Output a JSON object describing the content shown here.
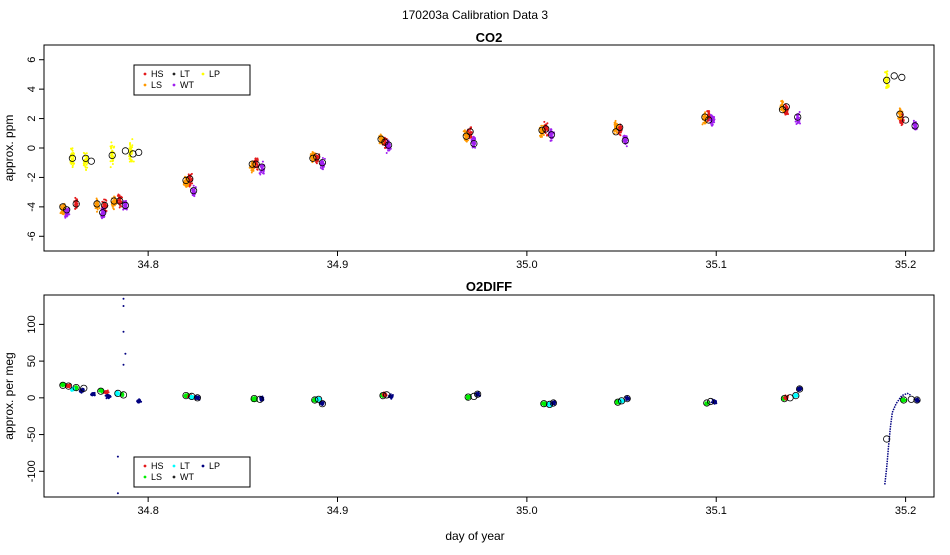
{
  "figure": {
    "suptitle": "170203a   Calibration Data 3",
    "xlabel": "day of year"
  },
  "chart_data": [
    {
      "type": "scatter",
      "title": "CO2",
      "ylabel": "approx. ppm",
      "xlim": [
        34.745,
        35.215
      ],
      "ylim": [
        -7.0,
        7.0
      ],
      "xticks": [
        34.8,
        34.9,
        35.0,
        35.1,
        35.2
      ],
      "xtick_labels": [
        "34.8",
        "34.9",
        "35.0",
        "35.1",
        "35.2"
      ],
      "yticks": [
        -6,
        -4,
        -2,
        0,
        2,
        4,
        6
      ],
      "ytick_labels": [
        "-6",
        "-4",
        "-2",
        "0",
        "2",
        "4",
        "6"
      ],
      "legend": {
        "placement": "top-left",
        "entries": [
          {
            "label": "HS",
            "color": "#e41a1c"
          },
          {
            "label": "LS",
            "color": "#ff9900"
          },
          {
            "label": "LT",
            "color": "#222222"
          },
          {
            "label": "WT",
            "color": "#a020f0"
          },
          {
            "label": "LP",
            "color": "#ffff00"
          }
        ]
      },
      "series": [
        {
          "name": "HS",
          "color": "#e41a1c",
          "clusters": [
            [
              34.762,
              -3.8
            ],
            [
              34.777,
              -3.9
            ],
            [
              34.785,
              -3.6
            ],
            [
              34.822,
              -2.1
            ],
            [
              34.857,
              -1.0
            ],
            [
              34.889,
              -0.7
            ],
            [
              34.925,
              0.4
            ],
            [
              34.97,
              1.0
            ],
            [
              35.01,
              1.3
            ],
            [
              35.049,
              1.2
            ],
            [
              35.096,
              2.1
            ],
            [
              35.137,
              2.6
            ],
            [
              35.198,
              1.9
            ]
          ]
        },
        {
          "name": "LS",
          "color": "#ff9900",
          "clusters": [
            [
              34.755,
              -4.2
            ],
            [
              34.773,
              -3.9
            ],
            [
              34.782,
              -3.7
            ],
            [
              34.82,
              -2.3
            ],
            [
              34.855,
              -1.2
            ],
            [
              34.887,
              -0.6
            ],
            [
              34.923,
              0.6
            ],
            [
              34.968,
              0.8
            ],
            [
              35.008,
              1.1
            ],
            [
              35.047,
              1.4
            ],
            [
              35.094,
              2.0
            ],
            [
              35.135,
              2.8
            ],
            [
              35.197,
              2.3
            ]
          ]
        },
        {
          "name": "WT",
          "color": "#a020f0",
          "clusters": [
            [
              34.757,
              -4.3
            ],
            [
              34.776,
              -4.4
            ],
            [
              34.788,
              -3.9
            ],
            [
              34.824,
              -3.0
            ],
            [
              34.86,
              -1.4
            ],
            [
              34.892,
              -1.1
            ],
            [
              34.927,
              0.1
            ],
            [
              34.972,
              0.4
            ],
            [
              35.013,
              0.9
            ],
            [
              35.052,
              0.5
            ],
            [
              35.098,
              1.9
            ],
            [
              35.143,
              2.0
            ],
            [
              35.205,
              1.5
            ]
          ]
        },
        {
          "name": "LP",
          "color": "#ffff00",
          "clusters": [
            [
              34.76,
              -0.6
            ],
            [
              34.767,
              -0.8
            ],
            [
              34.781,
              -0.5
            ],
            [
              34.791,
              -0.3
            ],
            [
              35.19,
              4.6
            ]
          ]
        }
      ],
      "open_markers": [
        [
          34.755,
          -4.0
        ],
        [
          34.757,
          -4.2
        ],
        [
          34.76,
          -0.7
        ],
        [
          34.762,
          -3.8
        ],
        [
          34.767,
          -0.7
        ],
        [
          34.77,
          -0.9
        ],
        [
          34.773,
          -3.8
        ],
        [
          34.776,
          -4.4
        ],
        [
          34.777,
          -3.9
        ],
        [
          34.781,
          -0.5
        ],
        [
          34.782,
          -3.6
        ],
        [
          34.785,
          -3.6
        ],
        [
          34.788,
          -3.9
        ],
        [
          34.788,
          -0.2
        ],
        [
          34.792,
          -0.4
        ],
        [
          34.795,
          -0.3
        ],
        [
          34.82,
          -2.2
        ],
        [
          34.822,
          -2.1
        ],
        [
          34.824,
          -2.9
        ],
        [
          34.855,
          -1.1
        ],
        [
          34.857,
          -1.1
        ],
        [
          34.86,
          -1.3
        ],
        [
          34.887,
          -0.7
        ],
        [
          34.889,
          -0.6
        ],
        [
          34.892,
          -1.0
        ],
        [
          34.923,
          0.6
        ],
        [
          34.925,
          0.4
        ],
        [
          34.927,
          0.2
        ],
        [
          34.968,
          0.8
        ],
        [
          34.97,
          1.1
        ],
        [
          34.972,
          0.3
        ],
        [
          35.008,
          1.2
        ],
        [
          35.01,
          1.3
        ],
        [
          35.013,
          0.9
        ],
        [
          35.047,
          1.1
        ],
        [
          35.049,
          1.4
        ],
        [
          35.052,
          0.5
        ],
        [
          35.094,
          2.1
        ],
        [
          35.096,
          1.9
        ],
        [
          35.135,
          2.6
        ],
        [
          35.137,
          2.8
        ],
        [
          35.143,
          2.1
        ],
        [
          35.19,
          4.6
        ],
        [
          35.194,
          4.9
        ],
        [
          35.198,
          4.8
        ],
        [
          35.197,
          2.3
        ],
        [
          35.2,
          1.9
        ],
        [
          35.205,
          1.5
        ]
      ]
    },
    {
      "type": "scatter",
      "title": "O2DIFF",
      "ylabel": "approx. per meg",
      "xlim": [
        34.745,
        35.215
      ],
      "ylim": [
        -135,
        140
      ],
      "xticks": [
        34.8,
        34.9,
        35.0,
        35.1,
        35.2
      ],
      "xtick_labels": [
        "34.8",
        "34.9",
        "35.0",
        "35.1",
        "35.2"
      ],
      "yticks": [
        -100,
        -50,
        0,
        50,
        100
      ],
      "ytick_labels": [
        "-100",
        "-50",
        "0",
        "50",
        "100"
      ],
      "legend": {
        "placement": "bottom-left",
        "entries": [
          {
            "label": "HS",
            "color": "#e41a1c"
          },
          {
            "label": "LS",
            "color": "#00ee00"
          },
          {
            "label": "LT",
            "color": "#00ffff"
          },
          {
            "label": "WT",
            "color": "#222222"
          },
          {
            "label": "LP",
            "color": "#000080"
          }
        ]
      },
      "series": [
        {
          "name": "LS",
          "color": "#00ee00",
          "clusters": [
            [
              34.755,
              18
            ],
            [
              34.762,
              14
            ],
            [
              34.775,
              10
            ],
            [
              34.786,
              5
            ],
            [
              34.82,
              3
            ],
            [
              34.856,
              -2
            ],
            [
              34.888,
              -3
            ],
            [
              34.924,
              3
            ],
            [
              34.969,
              1
            ],
            [
              35.009,
              -8
            ],
            [
              35.048,
              -6
            ],
            [
              35.095,
              -7
            ],
            [
              35.136,
              -1
            ],
            [
              35.199,
              -3
            ]
          ]
        },
        {
          "name": "HS",
          "color": "#e41a1c",
          "clusters": [
            [
              34.758,
              16
            ],
            [
              34.778,
              8
            ],
            [
              34.822,
              2
            ],
            [
              34.925,
              4
            ],
            [
              35.137,
              0
            ]
          ]
        },
        {
          "name": "LT",
          "color": "#00ffff",
          "clusters": [
            [
              34.76,
              12
            ],
            [
              34.784,
              6
            ],
            [
              34.823,
              1
            ],
            [
              34.89,
              -2
            ],
            [
              35.012,
              -9
            ],
            [
              35.05,
              -4
            ],
            [
              35.142,
              3
            ]
          ]
        },
        {
          "name": "LP",
          "color": "#000080",
          "clusters": [
            [
              34.765,
              10
            ],
            [
              34.771,
              5
            ],
            [
              34.779,
              2
            ],
            [
              34.795,
              -5
            ],
            [
              34.826,
              0
            ],
            [
              34.86,
              -1
            ],
            [
              34.892,
              -8
            ],
            [
              34.928,
              2
            ],
            [
              34.974,
              5
            ],
            [
              35.014,
              -7
            ],
            [
              35.053,
              -1
            ],
            [
              35.099,
              -5
            ],
            [
              35.144,
              12
            ],
            [
              35.206,
              -3
            ]
          ]
        }
      ],
      "outliers": [
        [
          34.787,
          135
        ],
        [
          34.787,
          125
        ],
        [
          34.787,
          90
        ],
        [
          34.788,
          60
        ],
        [
          34.787,
          45
        ],
        [
          34.784,
          -80
        ],
        [
          34.784,
          -130
        ]
      ],
      "recovery_curve": [
        [
          35.189,
          -118
        ],
        [
          35.19,
          -95
        ],
        [
          35.191,
          -65
        ],
        [
          35.192,
          -40
        ],
        [
          35.193,
          -20
        ],
        [
          35.195,
          -8
        ],
        [
          35.198,
          3
        ],
        [
          35.201,
          6
        ],
        [
          35.203,
          3
        ]
      ],
      "open_markers": [
        [
          34.755,
          17
        ],
        [
          34.758,
          16
        ],
        [
          34.762,
          14
        ],
        [
          34.766,
          13
        ],
        [
          34.775,
          9
        ],
        [
          34.784,
          6
        ],
        [
          34.787,
          4
        ],
        [
          34.82,
          3
        ],
        [
          34.823,
          2
        ],
        [
          34.826,
          0
        ],
        [
          34.856,
          -1
        ],
        [
          34.859,
          -2
        ],
        [
          34.888,
          -3
        ],
        [
          34.89,
          -2
        ],
        [
          34.892,
          -8
        ],
        [
          34.924,
          3
        ],
        [
          34.926,
          4
        ],
        [
          34.969,
          1
        ],
        [
          34.972,
          2
        ],
        [
          34.974,
          5
        ],
        [
          35.009,
          -8
        ],
        [
          35.012,
          -9
        ],
        [
          35.014,
          -7
        ],
        [
          35.048,
          -6
        ],
        [
          35.05,
          -4
        ],
        [
          35.053,
          -1
        ],
        [
          35.095,
          -7
        ],
        [
          35.097,
          -5
        ],
        [
          35.136,
          -1
        ],
        [
          35.139,
          0
        ],
        [
          35.142,
          3
        ],
        [
          35.144,
          12
        ],
        [
          35.19,
          -56
        ],
        [
          35.199,
          -3
        ],
        [
          35.203,
          -2
        ],
        [
          35.206,
          -3
        ]
      ]
    }
  ]
}
